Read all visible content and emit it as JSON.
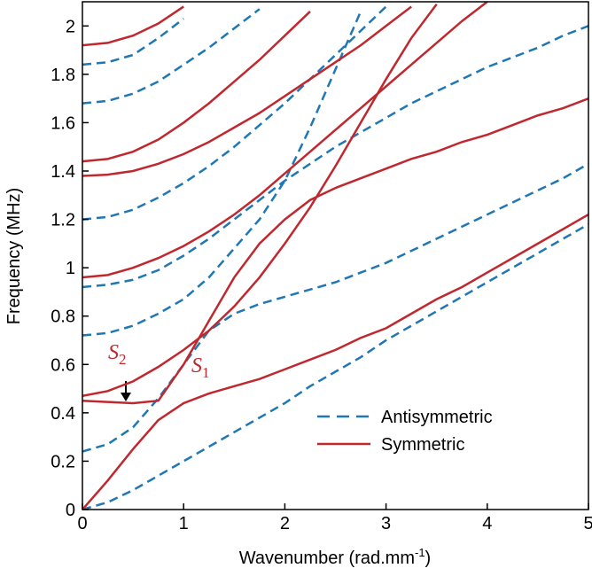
{
  "chart_data": {
    "type": "line",
    "xlabel": {
      "text": "Wavenumber (rad.mm",
      "sup": "-1",
      "end": ")"
    },
    "ylabel": "Frequency (MHz)",
    "xlim": [
      0,
      5
    ],
    "ylim": [
      0,
      2.1
    ],
    "xticks": [
      0,
      1,
      2,
      3,
      4,
      5
    ],
    "yticks": [
      0,
      0.2,
      0.4,
      0.6,
      0.8,
      1,
      1.2,
      1.4,
      1.6,
      1.8,
      2
    ],
    "legend": "lower right",
    "x": [
      0,
      0.25,
      0.5,
      0.75,
      1,
      1.25,
      1.5,
      1.75,
      2,
      2.25,
      2.5,
      2.75,
      3,
      3.25,
      3.5,
      3.75,
      4,
      4.25,
      4.5,
      4.75,
      5
    ],
    "series": [
      {
        "name": "Antisymmetric",
        "color": "#1f77b4",
        "dashed": true,
        "branches": [
          [
            0,
            0.03,
            0.08,
            0.14,
            0.2,
            0.26,
            0.32,
            0.38,
            0.44,
            0.51,
            0.57,
            0.63,
            0.7,
            0.76,
            0.82,
            0.88,
            0.94,
            1.0,
            1.06,
            1.12,
            1.18
          ],
          [
            0.24,
            0.27,
            0.34,
            0.46,
            0.6,
            0.74,
            0.81,
            0.85,
            0.88,
            0.91,
            0.94,
            0.98,
            1.02,
            1.07,
            1.12,
            1.17,
            1.22,
            1.27,
            1.32,
            1.37,
            1.43
          ],
          [
            0.72,
            0.73,
            0.76,
            0.81,
            0.87,
            0.96,
            1.08,
            1.2,
            1.36,
            1.58,
            1.82,
            2.06,
            null,
            null,
            null,
            null,
            null,
            null,
            null,
            null,
            null
          ],
          [
            0.92,
            0.93,
            0.95,
            0.99,
            1.05,
            1.12,
            1.2,
            1.28,
            1.36,
            1.43,
            1.5,
            1.56,
            1.62,
            1.68,
            1.73,
            1.78,
            1.83,
            1.87,
            1.91,
            1.96,
            2.0
          ],
          [
            1.2,
            1.21,
            1.24,
            1.29,
            1.35,
            1.42,
            1.5,
            1.59,
            1.68,
            1.78,
            1.88,
            1.98,
            2.08,
            null,
            null,
            null,
            null,
            null,
            null,
            null,
            null
          ],
          [
            1.68,
            1.69,
            1.72,
            1.77,
            1.84,
            1.91,
            1.99,
            2.07,
            null,
            null,
            null,
            null,
            null,
            null,
            null,
            null,
            null,
            null,
            null,
            null,
            null
          ],
          [
            1.84,
            1.85,
            1.88,
            1.95,
            2.03,
            null,
            null,
            null,
            null,
            null,
            null,
            null,
            null,
            null,
            null,
            null,
            null,
            null,
            null,
            null,
            null
          ]
        ]
      },
      {
        "name": "Symmetric",
        "color": "#c0282f",
        "dashed": false,
        "branches": [
          [
            0,
            0.12,
            0.25,
            0.37,
            0.44,
            0.48,
            0.51,
            0.54,
            0.58,
            0.62,
            0.66,
            0.71,
            0.75,
            0.81,
            0.87,
            0.92,
            0.98,
            1.04,
            1.1,
            1.16,
            1.22
          ],
          [
            0.45,
            0.445,
            0.44,
            0.45,
            0.6,
            0.78,
            0.96,
            1.1,
            1.2,
            1.28,
            1.33,
            1.37,
            1.41,
            1.45,
            1.48,
            1.52,
            1.55,
            1.59,
            1.63,
            1.66,
            1.7
          ],
          [
            0.47,
            0.49,
            0.53,
            0.59,
            0.66,
            0.74,
            0.84,
            0.96,
            1.1,
            1.25,
            1.42,
            1.6,
            1.78,
            1.95,
            2.09,
            null,
            null,
            null,
            null,
            null,
            null
          ],
          [
            0.96,
            0.97,
            1.0,
            1.04,
            1.09,
            1.15,
            1.22,
            1.3,
            1.39,
            1.48,
            1.57,
            1.66,
            1.75,
            1.84,
            1.93,
            2.02,
            2.1,
            null,
            null,
            null,
            null
          ],
          [
            1.38,
            1.385,
            1.4,
            1.43,
            1.47,
            1.52,
            1.58,
            1.64,
            1.71,
            1.78,
            1.85,
            1.92,
            2.0,
            2.08,
            null,
            null,
            null,
            null,
            null,
            null,
            null
          ],
          [
            1.44,
            1.45,
            1.48,
            1.53,
            1.6,
            1.68,
            1.77,
            1.86,
            1.96,
            2.06,
            null,
            null,
            null,
            null,
            null,
            null,
            null,
            null,
            null,
            null,
            null
          ],
          [
            1.92,
            1.93,
            1.96,
            2.01,
            2.08,
            null,
            null,
            null,
            null,
            null,
            null,
            null,
            null,
            null,
            null,
            null,
            null,
            null,
            null,
            null,
            null
          ]
        ]
      }
    ],
    "annotations": [
      {
        "text": "S",
        "sub": "2"
      },
      {
        "text": "S",
        "sub": "1"
      }
    ]
  }
}
